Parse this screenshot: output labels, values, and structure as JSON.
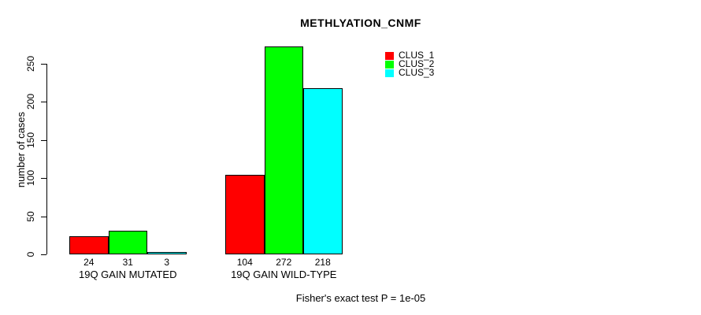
{
  "title": "METHLYATION_CNMF",
  "ylabel": "number of cases",
  "footer": "Fisher's exact test P = 1e-05",
  "colors": {
    "clus_1": "#ff0000",
    "clus_2": "#00ff00",
    "clus_3": "#00ffff",
    "axis": "#000000",
    "background": "#ffffff"
  },
  "chart_data": {
    "type": "bar",
    "title": "METHLYATION_CNMF",
    "xlabel": "",
    "ylabel": "number of cases",
    "categories": [
      "19Q GAIN MUTATED",
      "19Q GAIN WILD-TYPE"
    ],
    "series": [
      {
        "name": "CLUS_1",
        "color": "#ff0000",
        "values": [
          24,
          104
        ]
      },
      {
        "name": "CLUS_2",
        "color": "#00ff00",
        "values": [
          31,
          272
        ]
      },
      {
        "name": "CLUS_3",
        "color": "#00ffff",
        "values": [
          3,
          218
        ]
      }
    ],
    "bar_value_labels": [
      [
        "24",
        "31",
        "3"
      ],
      [
        "104",
        "272",
        "218"
      ]
    ],
    "yticks": [
      0,
      50,
      100,
      150,
      200,
      250
    ],
    "ylim": [
      0,
      272
    ],
    "grid": false,
    "legend_position": "top-right",
    "legend_entries": [
      "CLUS_1",
      "CLUS_2",
      "CLUS_3"
    ],
    "annotation": "Fisher's exact test P = 1e-05"
  }
}
